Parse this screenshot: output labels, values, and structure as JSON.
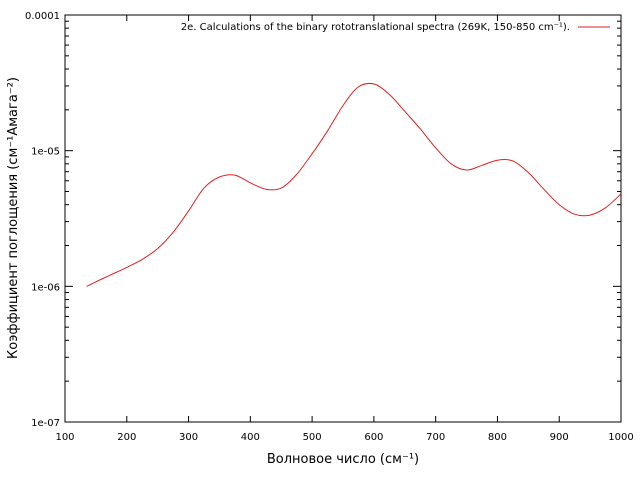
{
  "chart_data": {
    "type": "line",
    "title": "",
    "xlabel": "Волновое число (см⁻¹)",
    "ylabel": "Коэффициент поглощения (см⁻¹Амага⁻²)",
    "xlim": [
      100,
      1000
    ],
    "ylim": [
      1e-07,
      0.0001
    ],
    "yscale": "log",
    "grid": false,
    "legend": "top-right",
    "xticks": [
      100,
      200,
      300,
      400,
      500,
      600,
      700,
      800,
      900,
      1000
    ],
    "xtick_labels": [
      "100",
      "200",
      "300",
      "400",
      "500",
      "600",
      "700",
      "800",
      "900",
      "1000"
    ],
    "yticks": [
      1e-07,
      1e-06,
      1e-05,
      0.0001
    ],
    "ytick_labels": [
      "1e-07",
      "1e-06",
      "1e-05",
      "0.0001"
    ],
    "series": [
      {
        "name": "2e. Calculations of the binary rototranslational spectra (269K, 150-850 cm⁻¹).",
        "color": "#dd2222",
        "x": [
          135,
          150,
          175,
          200,
          225,
          250,
          275,
          300,
          325,
          350,
          375,
          400,
          425,
          450,
          475,
          500,
          525,
          550,
          575,
          600,
          625,
          650,
          675,
          700,
          725,
          750,
          775,
          800,
          825,
          850,
          875,
          900,
          925,
          950,
          975,
          1000
        ],
        "y": [
          1e-06,
          1.08e-06,
          1.22e-06,
          1.38e-06,
          1.58e-06,
          1.9e-06,
          2.5e-06,
          3.6e-06,
          5.3e-06,
          6.4e-06,
          6.6e-06,
          5.8e-06,
          5.2e-06,
          5.3e-06,
          6.7e-06,
          9.5e-06,
          1.4e-05,
          2.15e-05,
          2.95e-05,
          3.1e-05,
          2.6e-05,
          1.95e-05,
          1.45e-05,
          1.05e-05,
          8e-06,
          7.2e-06,
          7.8e-06,
          8.5e-06,
          8.4e-06,
          6.9e-06,
          5.2e-06,
          4e-06,
          3.4e-06,
          3.35e-06,
          3.8e-06,
          4.8e-06
        ]
      }
    ]
  }
}
